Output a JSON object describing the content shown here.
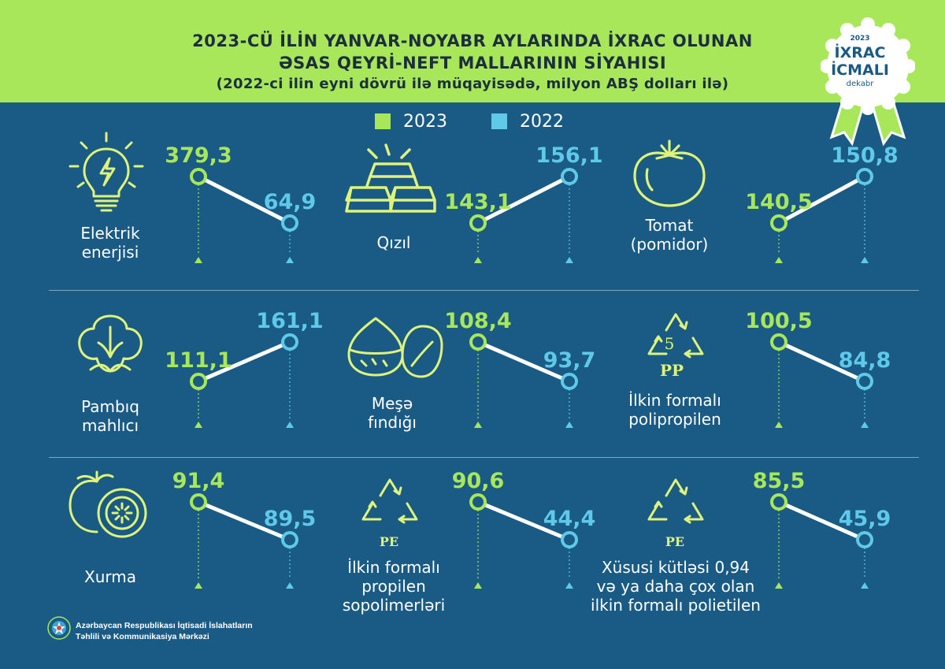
{
  "header": {
    "title_line1": "2023-CÜ İLİN YANVAR-NOYABR AYLARINDA İXRAC OLUNAN",
    "title_line2": "ƏSAS QEYRİ-NEFT MALLARININ SİYAHISI",
    "subtitle": "(2022-ci ilin eyni dövrü ilə müqayisədə, milyon ABŞ dolları ilə)"
  },
  "badge": {
    "year": "2023",
    "line1": "İXRAC",
    "line2": "İCMALI",
    "month": "dekabr"
  },
  "colors": {
    "header_bg": "#a8e65a",
    "body_bg": "#1a5b85",
    "color_2023": "#a8e65a",
    "color_2022": "#5fc9ea"
  },
  "footer": {
    "line1": "Azərbaycan Respublikası İqtisadi İslahatların",
    "line2": "Təhlili və Kommunikasiya Mərkəzi"
  },
  "chart_data": {
    "type": "line",
    "title": "2023-CÜ İLİN YANVAR-NOYABR AYLARINDA İXRAC OLUNAN ƏSAS QEYRİ-NEFT MALLARININ SİYAHISI",
    "subtitle": "(2022-ci ilin eyni dövrü ilə müqayisədə, milyon ABŞ dolları ilə)",
    "legend": {
      "labels": [
        "2023",
        "2022"
      ],
      "placement": "top-center"
    },
    "items": [
      {
        "label": [
          "Elektrik",
          "enerjisi"
        ],
        "icon": "lightbulb-icon",
        "v2023": "379,3",
        "v2022": "64,9",
        "n2023": 379.3,
        "n2022": 64.9
      },
      {
        "label": [
          "Qızıl"
        ],
        "icon": "gold-bars-icon",
        "v2023": "143,1",
        "v2022": "156,1",
        "n2023": 143.1,
        "n2022": 156.1
      },
      {
        "label": [
          "Tomat",
          "(pomidor)"
        ],
        "icon": "tomato-icon",
        "v2023": "140,5",
        "v2022": "150,8",
        "n2023": 140.5,
        "n2022": 150.8
      },
      {
        "label": [
          "Pambıq",
          "mahlıcı"
        ],
        "icon": "cotton-icon",
        "v2023": "111,1",
        "v2022": "161,1",
        "n2023": 111.1,
        "n2022": 161.1
      },
      {
        "label": [
          "Meşə",
          "fındığı"
        ],
        "icon": "hazelnut-icon",
        "v2023": "108,4",
        "v2022": "93,7",
        "n2023": 108.4,
        "n2022": 93.7
      },
      {
        "label": [
          "İlkin formalı",
          "polipropilen"
        ],
        "icon": "recycle-pp-icon",
        "code_number": "5",
        "code": "PP",
        "v2023": "100,5",
        "v2022": "84,8",
        "n2023": 100.5,
        "n2022": 84.8
      },
      {
        "label": [
          "Xurma"
        ],
        "icon": "persimmon-icon",
        "v2023": "91,4",
        "v2022": "89,5",
        "n2023": 91.4,
        "n2022": 89.5
      },
      {
        "label": [
          "İlkin formalı",
          "propilen",
          "sopolimerləri"
        ],
        "icon": "recycle-pe-icon",
        "code": "PE",
        "v2023": "90,6",
        "v2022": "44,4",
        "n2023": 90.6,
        "n2022": 44.4
      },
      {
        "label": [
          "Xüsusi kütləsi 0,94",
          "və ya daha çox olan",
          "ilkin formalı polietilen"
        ],
        "icon": "recycle-pe-icon",
        "code": "PE",
        "v2023": "85,5",
        "v2022": "45,9",
        "n2023": 85.5,
        "n2022": 45.9
      }
    ]
  }
}
